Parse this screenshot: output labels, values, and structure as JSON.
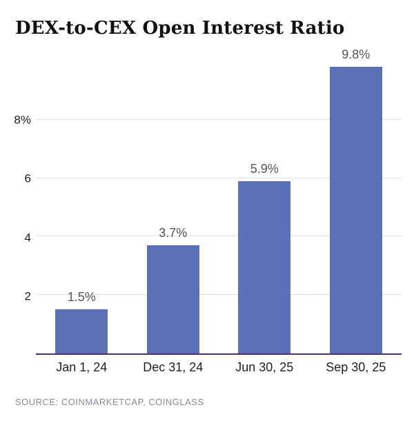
{
  "header": {
    "title": "DEX-to-CEX Open Interest Ratio"
  },
  "chart_data": {
    "type": "bar",
    "title": "DEX-to-CEX Open Interest Ratio",
    "categories": [
      "Jan 1, 24",
      "Dec 31, 24",
      "Jun 30, 25",
      "Sep 30, 25"
    ],
    "values": [
      1.5,
      3.7,
      5.9,
      9.8
    ],
    "value_labels": [
      "1.5%",
      "3.7%",
      "5.9%",
      "9.8%"
    ],
    "xlabel": "",
    "ylabel": "",
    "ylim": [
      0,
      10
    ],
    "yticks": [
      {
        "value": 2,
        "label": "2"
      },
      {
        "value": 4,
        "label": "4"
      },
      {
        "value": 6,
        "label": "6"
      },
      {
        "value": 8,
        "label": "8%"
      }
    ],
    "grid": true,
    "legend": "none"
  },
  "footer": {
    "source": "SOURCE: COINMARKETCAP, COINGLASS"
  },
  "colors": {
    "bar": "#5C71B5",
    "axis_line": "#4B2C83",
    "gridline": "#E0E0E0",
    "value_label": "#55555A",
    "y_tick_label": "#1A1A1A",
    "x_tick_label": "#1F1F23",
    "source_text": "#8A8795",
    "title_text": "#111111",
    "background": "#FFFFFF"
  }
}
